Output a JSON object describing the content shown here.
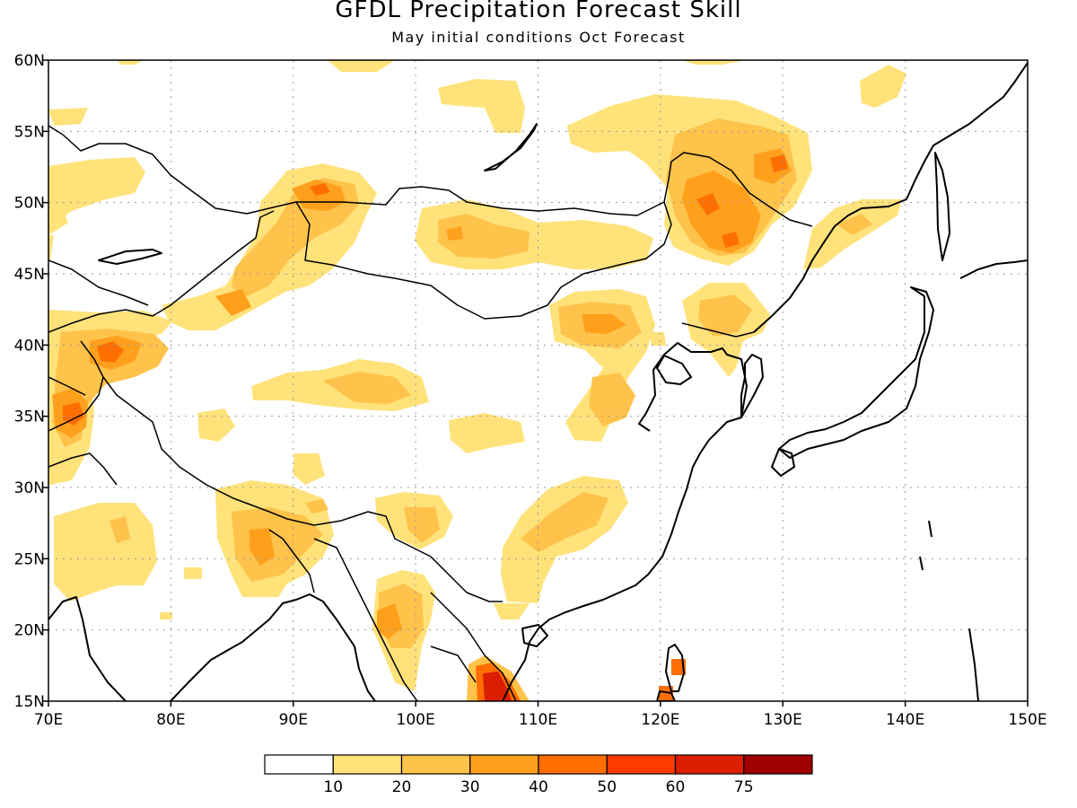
{
  "figure": {
    "title": "GFDL Precipitation Forecast Skill",
    "subtitle": "May initial conditions  Oct Forecast"
  },
  "map": {
    "lon_range": [
      70,
      150
    ],
    "lat_range": [
      15,
      60
    ],
    "lon_ticks": [
      "70E",
      "80E",
      "90E",
      "100E",
      "110E",
      "120E",
      "130E",
      "140E",
      "150E"
    ],
    "lat_ticks": [
      "15N",
      "20N",
      "25N",
      "30N",
      "35N",
      "40N",
      "45N",
      "50N",
      "55N",
      "60N"
    ],
    "grid": true
  },
  "colorbar": {
    "tick_labels": [
      "10",
      "20",
      "30",
      "40",
      "50",
      "60",
      "75"
    ],
    "colors": [
      "#ffffff",
      "#ffe27a",
      "#ffc24a",
      "#ffa01c",
      "#ff6e00",
      "#ff3c00",
      "#dc1e00",
      "#a00000"
    ]
  }
}
